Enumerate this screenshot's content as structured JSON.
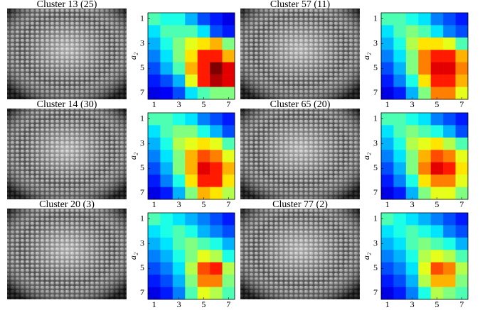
{
  "panels": [
    {
      "title": "Cluster 13 (25)",
      "heatmap": {
        "type": "heatmap",
        "ylabel": "a₂",
        "xticks": [
          1,
          3,
          5,
          7
        ],
        "yticks": [
          1,
          3,
          5,
          7
        ],
        "clim": [
          0,
          1
        ],
        "values": [
          [
            0.45,
            0.4,
            0.4,
            0.3,
            0.2,
            0.15,
            0.1
          ],
          [
            0.35,
            0.45,
            0.45,
            0.45,
            0.35,
            0.2,
            0.15
          ],
          [
            0.3,
            0.4,
            0.5,
            0.6,
            0.65,
            0.7,
            0.5
          ],
          [
            0.25,
            0.35,
            0.5,
            0.65,
            0.85,
            0.85,
            0.7
          ],
          [
            0.2,
            0.3,
            0.45,
            0.7,
            0.85,
            1.0,
            0.9
          ],
          [
            0.15,
            0.2,
            0.3,
            0.6,
            0.85,
            0.95,
            0.9
          ],
          [
            0.1,
            0.12,
            0.2,
            0.35,
            0.45,
            0.5,
            0.5
          ]
        ]
      }
    },
    {
      "title": "Cluster 57 (11)",
      "heatmap": {
        "type": "heatmap",
        "ylabel": "a₂",
        "xticks": [
          1,
          3,
          5,
          7
        ],
        "yticks": [
          1,
          3,
          5,
          7
        ],
        "clim": [
          0,
          1
        ],
        "values": [
          [
            0.45,
            0.45,
            0.4,
            0.35,
            0.25,
            0.2,
            0.15
          ],
          [
            0.35,
            0.45,
            0.5,
            0.45,
            0.35,
            0.25,
            0.2
          ],
          [
            0.3,
            0.4,
            0.55,
            0.65,
            0.65,
            0.6,
            0.45
          ],
          [
            0.25,
            0.35,
            0.5,
            0.75,
            0.85,
            0.85,
            0.7
          ],
          [
            0.2,
            0.3,
            0.5,
            0.75,
            0.9,
            0.9,
            0.75
          ],
          [
            0.15,
            0.25,
            0.4,
            0.65,
            0.85,
            0.85,
            0.7
          ],
          [
            0.1,
            0.15,
            0.3,
            0.5,
            0.75,
            0.75,
            0.6
          ]
        ]
      }
    },
    {
      "title": "Cluster 14 (30)",
      "heatmap": {
        "type": "heatmap",
        "ylabel": "a₂",
        "xticks": [
          1,
          3,
          5,
          7
        ],
        "yticks": [
          1,
          3,
          5,
          7
        ],
        "clim": [
          0,
          1
        ],
        "values": [
          [
            0.45,
            0.45,
            0.4,
            0.35,
            0.25,
            0.2,
            0.15
          ],
          [
            0.35,
            0.45,
            0.5,
            0.5,
            0.4,
            0.3,
            0.2
          ],
          [
            0.3,
            0.4,
            0.55,
            0.6,
            0.65,
            0.6,
            0.45
          ],
          [
            0.25,
            0.35,
            0.5,
            0.7,
            0.8,
            0.75,
            0.6
          ],
          [
            0.2,
            0.3,
            0.5,
            0.7,
            0.9,
            0.85,
            0.7
          ],
          [
            0.15,
            0.25,
            0.4,
            0.65,
            0.85,
            0.85,
            0.65
          ],
          [
            0.1,
            0.15,
            0.3,
            0.5,
            0.7,
            0.65,
            0.55
          ]
        ]
      }
    },
    {
      "title": "Cluster 65 (20)",
      "heatmap": {
        "type": "heatmap",
        "ylabel": "a₂",
        "xticks": [
          1,
          3,
          5,
          7
        ],
        "yticks": [
          1,
          3,
          5,
          7
        ],
        "clim": [
          0,
          1
        ],
        "values": [
          [
            0.45,
            0.45,
            0.4,
            0.35,
            0.25,
            0.2,
            0.15
          ],
          [
            0.35,
            0.45,
            0.5,
            0.45,
            0.4,
            0.3,
            0.2
          ],
          [
            0.3,
            0.4,
            0.55,
            0.6,
            0.65,
            0.55,
            0.45
          ],
          [
            0.25,
            0.35,
            0.5,
            0.7,
            0.8,
            0.75,
            0.6
          ],
          [
            0.2,
            0.3,
            0.5,
            0.75,
            0.9,
            0.85,
            0.65
          ],
          [
            0.15,
            0.25,
            0.4,
            0.65,
            0.75,
            0.75,
            0.6
          ],
          [
            0.1,
            0.15,
            0.3,
            0.5,
            0.6,
            0.6,
            0.5
          ]
        ]
      }
    },
    {
      "title": "Cluster 20 (3)",
      "heatmap": {
        "type": "heatmap",
        "ylabel": "a₂",
        "xticks": [
          1,
          3,
          5,
          7
        ],
        "yticks": [
          1,
          3,
          5,
          7
        ],
        "clim": [
          0,
          1
        ],
        "values": [
          [
            0.45,
            0.4,
            0.35,
            0.3,
            0.25,
            0.2,
            0.15
          ],
          [
            0.35,
            0.4,
            0.45,
            0.4,
            0.3,
            0.25,
            0.2
          ],
          [
            0.3,
            0.35,
            0.45,
            0.5,
            0.45,
            0.4,
            0.3
          ],
          [
            0.25,
            0.3,
            0.4,
            0.5,
            0.6,
            0.55,
            0.4
          ],
          [
            0.2,
            0.25,
            0.35,
            0.55,
            0.8,
            0.85,
            0.55
          ],
          [
            0.15,
            0.2,
            0.3,
            0.5,
            0.75,
            0.75,
            0.5
          ],
          [
            0.1,
            0.15,
            0.25,
            0.45,
            0.6,
            0.55,
            0.45
          ]
        ]
      }
    },
    {
      "title": "Cluster 77 (2)",
      "heatmap": {
        "type": "heatmap",
        "ylabel": "a₂",
        "xticks": [
          1,
          3,
          5,
          7
        ],
        "yticks": [
          1,
          3,
          5,
          7
        ],
        "clim": [
          0,
          1
        ],
        "values": [
          [
            0.45,
            0.4,
            0.35,
            0.3,
            0.25,
            0.2,
            0.15
          ],
          [
            0.35,
            0.4,
            0.45,
            0.4,
            0.35,
            0.25,
            0.2
          ],
          [
            0.3,
            0.35,
            0.45,
            0.5,
            0.45,
            0.4,
            0.3
          ],
          [
            0.25,
            0.3,
            0.4,
            0.55,
            0.6,
            0.55,
            0.45
          ],
          [
            0.2,
            0.25,
            0.35,
            0.6,
            0.8,
            0.75,
            0.55
          ],
          [
            0.15,
            0.2,
            0.3,
            0.55,
            0.7,
            0.7,
            0.5
          ],
          [
            0.1,
            0.15,
            0.25,
            0.4,
            0.55,
            0.5,
            0.45
          ]
        ]
      }
    }
  ]
}
